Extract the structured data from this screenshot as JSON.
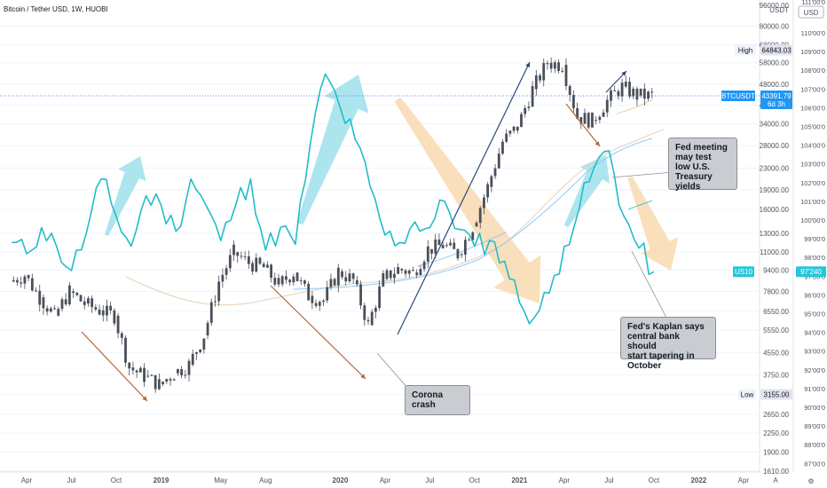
{
  "header": {
    "title": "Bitcoin / Tether USD, 1W, HUOBI"
  },
  "colors": {
    "up": "#26a69a",
    "down": "#ef5350",
    "candle": "#4a4f59",
    "us10": "#22bcc8",
    "price_line": "#2962ff",
    "tag_blue": "#2196f3",
    "tag_cyan": "#26c6da",
    "arrow_up": "#9fe1ec",
    "arrow_down": "#f9d9b0",
    "trend_line": "#2a4a7a",
    "diag": "#b5673a"
  },
  "right_axis": {
    "unit": "USDT",
    "labels": [
      "96000.00",
      "80000.00",
      "68000.00",
      "58000.00",
      "48000.00",
      "40000.00",
      "34000.00",
      "28000.00",
      "23000.00",
      "19000.00",
      "16000.00",
      "13000.00",
      "11000.00",
      "9400.00",
      "7800.00",
      "6550.00",
      "5550.00",
      "4550.00",
      "3750.00",
      "3150.00",
      "2650.00",
      "2250.00",
      "1900.00",
      "1610.00"
    ],
    "values": [
      96000,
      80000,
      68000,
      58000,
      48000,
      40000,
      34000,
      28000,
      23000,
      19000,
      16000,
      13000,
      11000,
      9400,
      7800,
      6550,
      5550,
      4550,
      3750,
      3150,
      2650,
      2250,
      1900,
      1610
    ],
    "high_label": "High",
    "high_value": "64843.03",
    "low_label": "Low",
    "low_value": "3155.00",
    "btc_tag": "BTCUSDT",
    "btc_value": "43391.79",
    "btc_countdown": "6d 3h",
    "us10_tag": "US10"
  },
  "far_right_axis": {
    "unit": "USD",
    "labels": [
      "110'00'0",
      "109'00'0",
      "108'00'0",
      "107'00'0",
      "106'00'0",
      "105'00'0",
      "104'00'0",
      "103'00'0",
      "102'00'0",
      "101'00'0",
      "100'00'0",
      "99'00'0",
      "98'00'0",
      "97'00'0",
      "96'00'0",
      "95'00'0",
      "94'00'0",
      "93'00'0",
      "92'00'0",
      "91'00'0",
      "90'00'0",
      "89'00'0",
      "88'00'0",
      "87'00'0"
    ],
    "values": [
      110,
      109,
      108,
      107,
      106,
      105,
      104,
      103,
      102,
      101,
      100,
      99,
      98,
      97,
      96,
      95,
      94,
      93,
      92,
      91,
      90,
      89,
      88,
      87
    ],
    "us10_value": "97'240",
    "top_partial": "111'00'0"
  },
  "time_axis": {
    "labels": [
      "Apr",
      "Jul",
      "Oct",
      "2019",
      "May",
      "Aug",
      "2020",
      "Apr",
      "Jul",
      "Oct",
      "2021",
      "Apr",
      "Jul",
      "Oct",
      "2022",
      "Apr"
    ],
    "bold": [
      false,
      false,
      false,
      true,
      false,
      false,
      true,
      false,
      false,
      false,
      true,
      false,
      false,
      false,
      true,
      false
    ],
    "a_label": "A",
    "tz_label": "⚙"
  },
  "callouts": {
    "fed_meeting": "Fed meeting\nmay test\nlow U.S.\nTreasury\nyields",
    "kaplan": "Fed's Kaplan says\ncentral bank should\nstart tapering in\nOctober",
    "corona": "Corona\ncrash"
  },
  "chart_data": {
    "type": "line",
    "title": "Bitcoin / Tether USD, 1W, HUOBI",
    "y_scale": "log",
    "ylim": [
      1610,
      96000
    ],
    "y2lim": [
      87,
      110
    ],
    "legend": "none",
    "series": [
      {
        "name": "BTCUSDT",
        "style": "candles",
        "x": [
          "2018-03",
          "2018-04",
          "2018-05",
          "2018-06",
          "2018-07",
          "2018-08",
          "2018-09",
          "2018-10",
          "2018-11",
          "2018-12",
          "2019-01",
          "2019-02",
          "2019-03",
          "2019-04",
          "2019-05",
          "2019-06",
          "2019-07",
          "2019-08",
          "2019-09",
          "2019-10",
          "2019-11",
          "2019-12",
          "2020-01",
          "2020-02",
          "2020-03",
          "2020-04",
          "2020-05",
          "2020-06",
          "2020-07",
          "2020-08",
          "2020-09",
          "2020-10",
          "2020-11",
          "2020-12",
          "2021-01",
          "2021-02",
          "2021-03",
          "2021-04",
          "2021-05",
          "2021-06",
          "2021-07",
          "2021-08",
          "2021-09",
          "2021-10"
        ],
        "values": [
          8500,
          9000,
          7400,
          6300,
          7800,
          7000,
          6600,
          6300,
          4000,
          3700,
          3450,
          3800,
          4100,
          5300,
          8500,
          11000,
          10000,
          9600,
          8300,
          9200,
          7500,
          7200,
          9300,
          8600,
          5800,
          8700,
          9500,
          9200,
          11300,
          11700,
          10800,
          13800,
          19500,
          29000,
          33000,
          46000,
          58000,
          57000,
          36000,
          35000,
          41500,
          47000,
          43500,
          43391.79
        ]
      },
      {
        "name": "US10",
        "x": [
          "2018-03",
          "2018-04",
          "2018-05",
          "2018-06",
          "2018-07",
          "2018-08",
          "2018-09",
          "2018-10",
          "2018-11",
          "2018-12",
          "2019-01",
          "2019-02",
          "2019-03",
          "2019-04",
          "2019-05",
          "2019-06",
          "2019-07",
          "2019-08",
          "2019-09",
          "2019-10",
          "2019-11",
          "2019-12",
          "2020-01",
          "2020-02",
          "2020-03",
          "2020-04",
          "2020-05",
          "2020-06",
          "2020-07",
          "2020-08",
          "2020-09",
          "2020-10",
          "2020-11",
          "2020-12",
          "2021-01",
          "2021-02",
          "2021-03",
          "2021-04",
          "2021-05",
          "2021-06",
          "2021-07",
          "2021-08",
          "2021-09",
          "2021-10"
        ],
        "values": [
          98.8,
          98.2,
          99.6,
          98.6,
          97.3,
          99.3,
          102.2,
          100.2,
          98.6,
          101.3,
          100.8,
          99.4,
          102.2,
          100.8,
          98.9,
          100.8,
          102.2,
          98.4,
          99.6,
          98.7,
          104.1,
          107.8,
          106.0,
          104.3,
          101.8,
          99.2,
          98.8,
          99.9,
          99.6,
          101.0,
          99.5,
          98.6,
          98.9,
          97.8,
          95.6,
          94.8,
          96.1,
          98.6,
          100.6,
          102.8,
          103.7,
          100.2,
          98.5,
          97.24
        ]
      }
    ],
    "price_line": 43391.79,
    "high": 64843.03,
    "low": 3155.0
  }
}
